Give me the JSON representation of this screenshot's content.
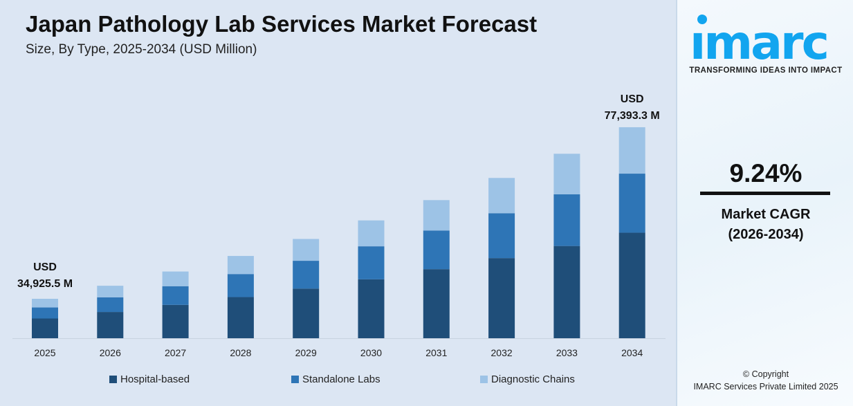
{
  "header": {
    "title": "Japan Pathology Lab Services Market Forecast",
    "subtitle": "Size, By Type, 2025-2034 (USD Million)"
  },
  "chart_data": {
    "type": "bar",
    "stacked": true,
    "title": "Japan Pathology Lab Services Market Forecast",
    "subtitle": "Size, By Type, 2025-2034 (USD Million)",
    "categories": [
      "2025",
      "2026",
      "2027",
      "2028",
      "2029",
      "2030",
      "2031",
      "2032",
      "2033",
      "2034"
    ],
    "series": [
      {
        "name": "Hospital-based",
        "color": "#1f4e79",
        "values": [
          17462.8,
          19076.0,
          20838.5,
          22764.0,
          24867.5,
          27165.5,
          29675.5,
          32417.5,
          35413.0,
          38696.7
        ]
      },
      {
        "name": "Standalone Labs",
        "color": "#2e75b6",
        "values": [
          9779.1,
          10682.6,
          11669.6,
          12747.8,
          13925.8,
          15212.7,
          16618.3,
          18153.8,
          19831.3,
          21670.1
        ]
      },
      {
        "name": "Diagnostic Chains",
        "color": "#9dc3e6",
        "values": [
          7683.6,
          8393.4,
          9168.9,
          10016.2,
          10941.7,
          11952.8,
          13057.2,
          14263.7,
          15581.7,
          17026.5
        ]
      }
    ],
    "annotations": [
      {
        "category": "2025",
        "line1": "USD",
        "line2": "34,925.5 M"
      },
      {
        "category": "2034",
        "line1": "USD",
        "line2": "77,393.3 M"
      }
    ],
    "legend": "bottom",
    "grid": false,
    "y_axis_visible": false
  },
  "sidebar": {
    "logo": "imarc",
    "tagline": "TRANSFORMING IDEAS INTO IMPACT",
    "cagr_value": "9.24%",
    "cagr_label": "Market CAGR",
    "cagr_period": "(2026-2034)",
    "copyright": "© Copyright",
    "company": "IMARC Services Private Limited 2025",
    "brand_color": "#12a5ef"
  }
}
